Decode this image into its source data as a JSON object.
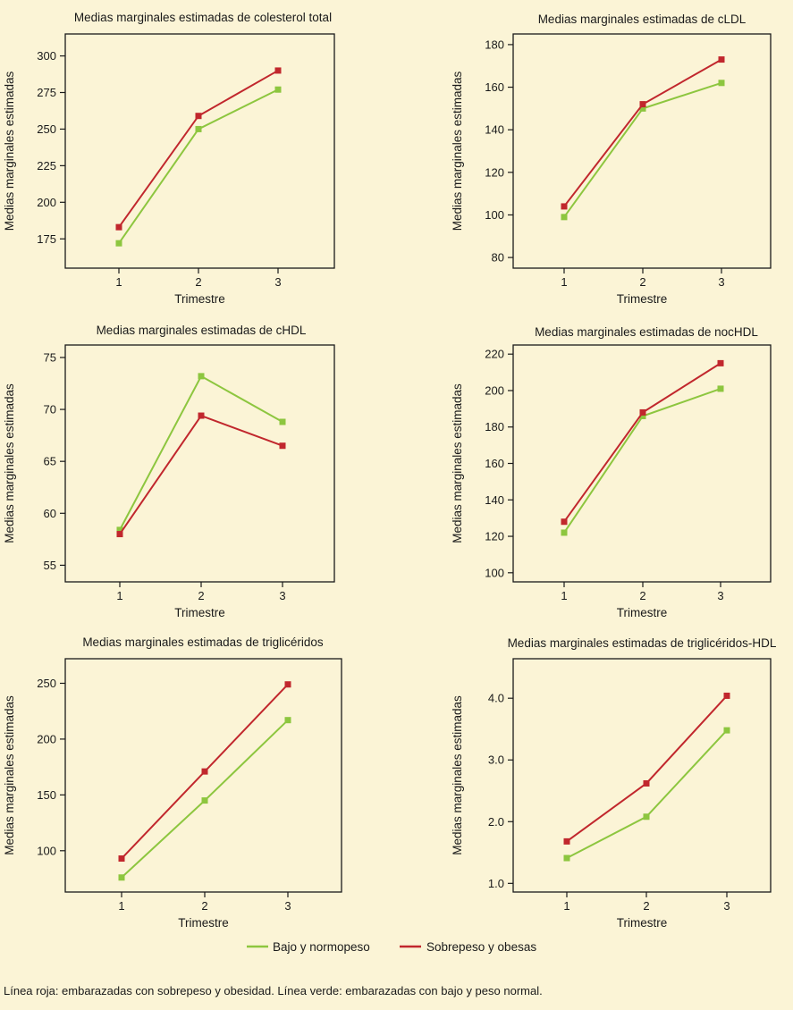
{
  "colors": {
    "green": "#8dc63f",
    "red": "#c1272d"
  },
  "legend": [
    {
      "label": "Bajo y normopeso",
      "color": "#8dc63f"
    },
    {
      "label": "Sobrepeso y obesas",
      "color": "#c1272d"
    }
  ],
  "footnote": "Línea roja: embarazadas con sobrepeso y obesidad. Línea verde: embarazadas con bajo y peso normal.",
  "chart_data": [
    {
      "type": "line",
      "title": "Medias marginales estimadas de colesterol total",
      "xlabel": "Trimestre",
      "ylabel": "Medias marginales estimadas",
      "categories": [
        "1",
        "2",
        "3"
      ],
      "ylim": [
        155,
        315
      ],
      "yticks": [
        175,
        200,
        225,
        250,
        275,
        300
      ],
      "series": [
        {
          "name": "Bajo y normopeso",
          "values": [
            172,
            250,
            277
          ]
        },
        {
          "name": "Sobrepeso y obesas",
          "values": [
            183,
            259,
            290
          ]
        }
      ]
    },
    {
      "type": "line",
      "title": "Medias marginales estimadas de cLDL",
      "xlabel": "Trimestre",
      "ylabel": "Medias marginales estimadas",
      "categories": [
        "1",
        "2",
        "3"
      ],
      "ylim": [
        75,
        185
      ],
      "yticks": [
        80,
        100,
        120,
        140,
        160,
        180
      ],
      "series": [
        {
          "name": "Bajo y normopeso",
          "values": [
            99,
            150,
            162
          ]
        },
        {
          "name": "Sobrepeso y obesas",
          "values": [
            104,
            152,
            173
          ]
        }
      ]
    },
    {
      "type": "line",
      "title": "Medias marginales estimadas de cHDL",
      "xlabel": "Trimestre",
      "ylabel": "Medias marginales estimadas",
      "categories": [
        "1",
        "2",
        "3"
      ],
      "ylim": [
        53.4,
        76.2
      ],
      "yticks": [
        55,
        60,
        65,
        70,
        75
      ],
      "series": [
        {
          "name": "Bajo y normopeso",
          "values": [
            58.4,
            73.2,
            68.8
          ]
        },
        {
          "name": "Sobrepeso y obesas",
          "values": [
            58.0,
            69.4,
            66.5
          ]
        }
      ]
    },
    {
      "type": "line",
      "title": "Medias marginales estimadas de nocHDL",
      "xlabel": "Trimestre",
      "ylabel": "Medias marginales estimadas",
      "categories": [
        "1",
        "2",
        "3"
      ],
      "ylim": [
        95,
        225
      ],
      "yticks": [
        100,
        120,
        140,
        160,
        180,
        200,
        220
      ],
      "series": [
        {
          "name": "Bajo y normopeso",
          "values": [
            122,
            186,
            201
          ]
        },
        {
          "name": "Sobrepeso y obesas",
          "values": [
            128,
            188,
            215
          ]
        }
      ]
    },
    {
      "type": "line",
      "title": "Medias marginales estimadas de triglicéridos",
      "xlabel": "Trimestre",
      "ylabel": "Medias marginales estimadas",
      "categories": [
        "1",
        "2",
        "3"
      ],
      "ylim": [
        63,
        272
      ],
      "yticks": [
        100,
        150,
        200,
        250
      ],
      "series": [
        {
          "name": "Bajo y normopeso",
          "values": [
            76,
            145,
            217
          ]
        },
        {
          "name": "Sobrepeso y obesas",
          "values": [
            93,
            171,
            249
          ]
        }
      ]
    },
    {
      "type": "line",
      "title": "Medias marginales estimadas de triglicéridos-HDL",
      "xlabel": "Trimestre",
      "ylabel": "Medias marginales estimadas",
      "categories": [
        "1",
        "2",
        "3"
      ],
      "ylim": [
        0.86,
        4.64
      ],
      "yticks": [
        "1.0",
        "2.0",
        "3.0",
        "4.0"
      ],
      "series": [
        {
          "name": "Bajo y normopeso",
          "values": [
            1.41,
            2.08,
            3.48
          ]
        },
        {
          "name": "Sobrepeso y obesas",
          "values": [
            1.68,
            2.62,
            4.04
          ]
        }
      ]
    }
  ]
}
